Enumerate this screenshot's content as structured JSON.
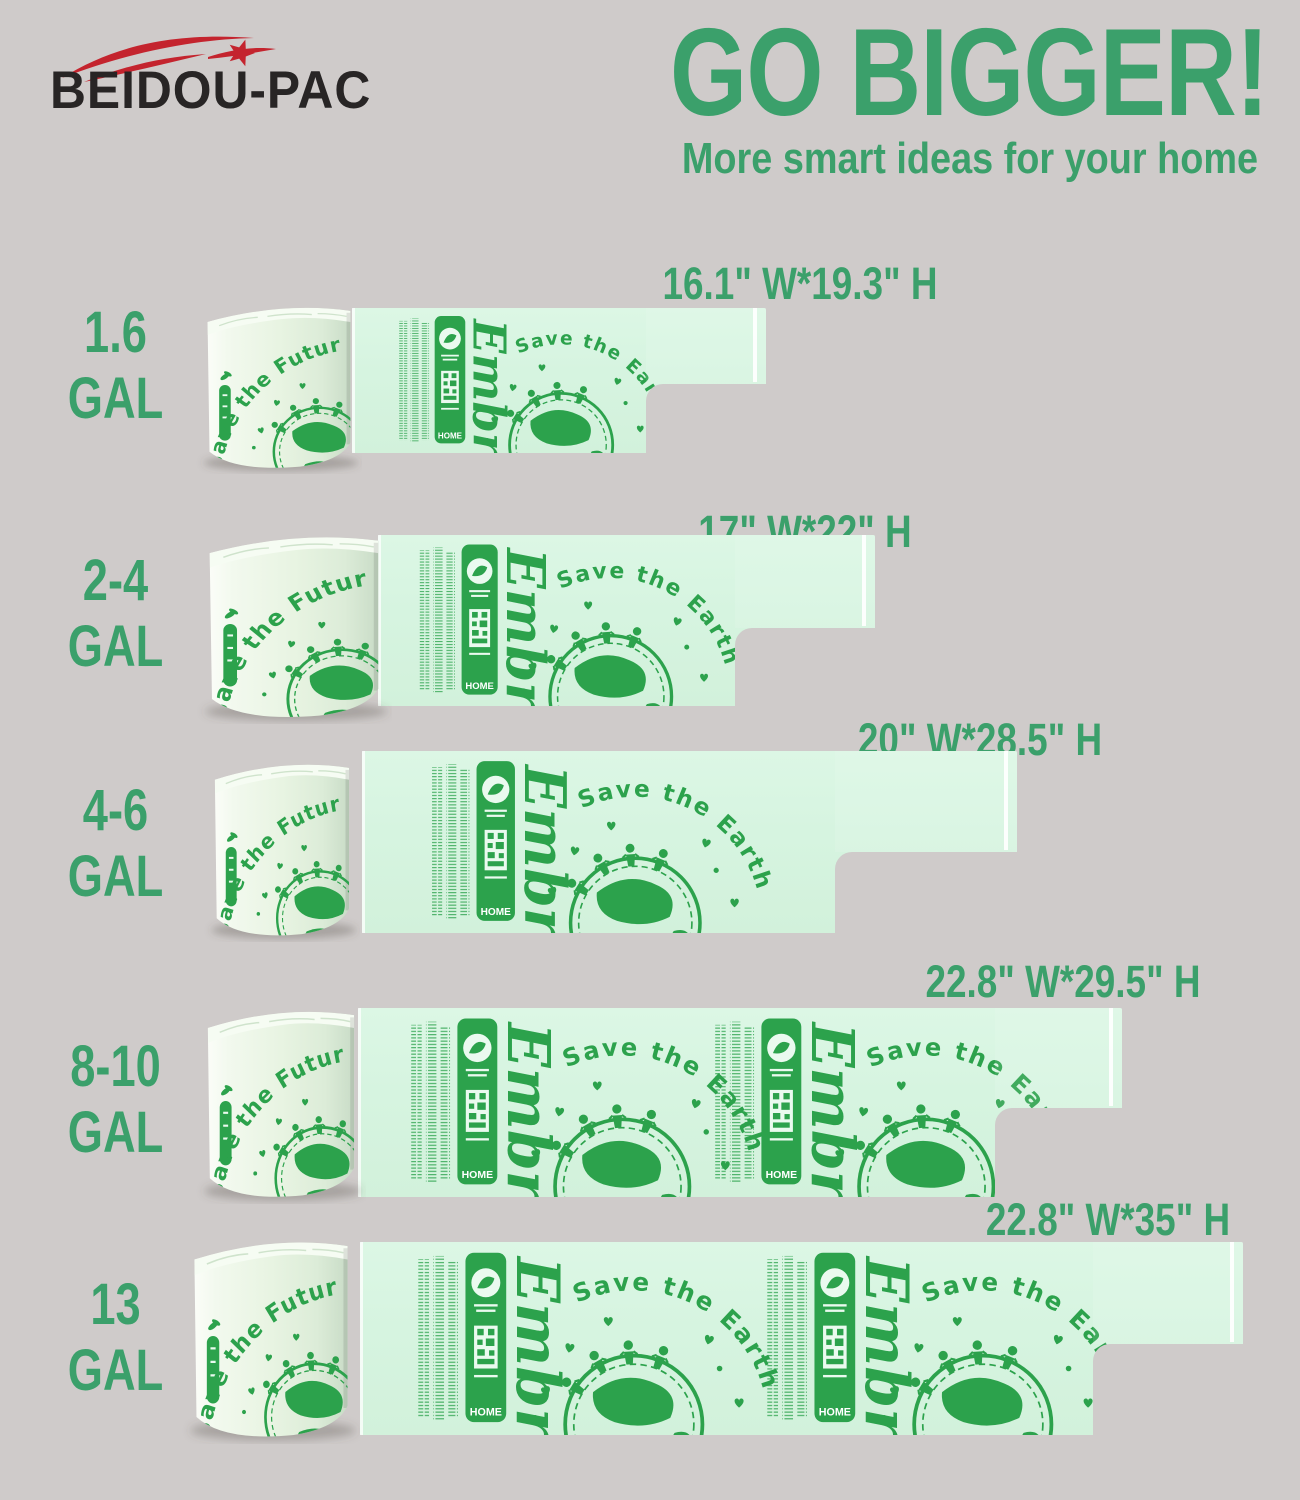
{
  "colors": {
    "background": "#cfcbca",
    "accent_green": "#3ba06b",
    "print_green": "#2ca24c",
    "sheet_green": "#d6f4e0",
    "logo_red": "#c4242e",
    "logo_dark": "#282525"
  },
  "logo": {
    "brand": "BEIDOU-PAC"
  },
  "header": {
    "title": "GO BIGGER!",
    "subtitle": "More smart ideas for your home"
  },
  "bag_print": {
    "roll_arc_text": "Save the Future",
    "sheet_arc_text": "Save the Earth S",
    "script_text": "Embrace",
    "badge_label": "HOME"
  },
  "rows": [
    {
      "size": "1.6",
      "unit": "GAL",
      "dimensions": "16.1\" W*19.3\" H"
    },
    {
      "size": "2-4",
      "unit": "GAL",
      "dimensions": "17\" W*22\" H"
    },
    {
      "size": "4-6",
      "unit": "GAL",
      "dimensions": "20\" W*28.5\" H"
    },
    {
      "size": "8-10",
      "unit": "GAL",
      "dimensions": "22.8\" W*29.5\" H"
    },
    {
      "size": "13",
      "unit": "GAL",
      "dimensions": "22.8\" W*35\" H"
    }
  ]
}
